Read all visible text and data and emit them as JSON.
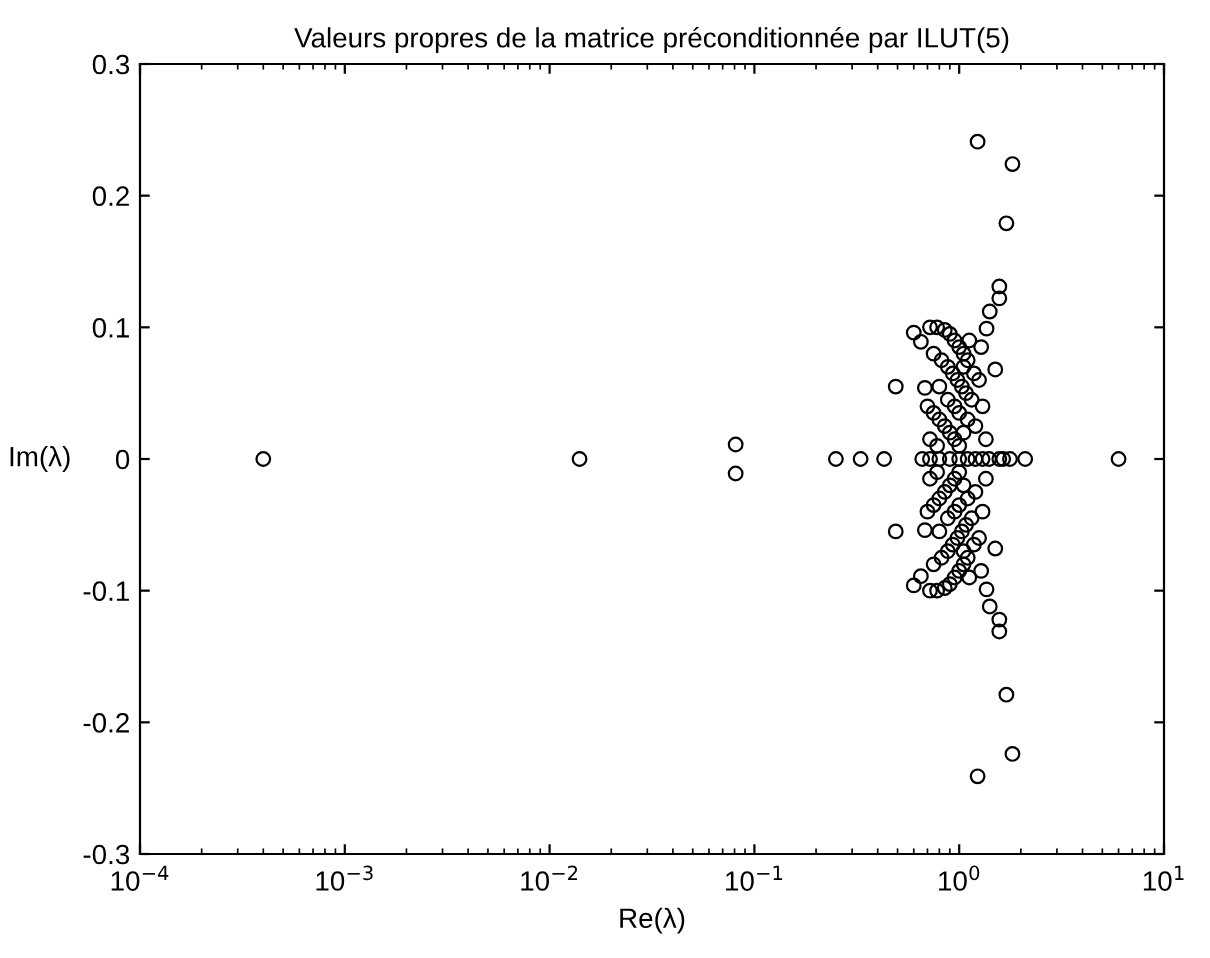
{
  "chart_data": {
    "type": "scatter",
    "title": "Valeurs propres de la matrice préconditionnée par ILUT(5)",
    "xlabel": "Re(λ)",
    "ylabel": "Im(λ)",
    "log": "x",
    "marker": "circle",
    "grid": false,
    "xlim": [
      0.0001,
      10
    ],
    "ylim": [
      -0.3,
      0.3
    ],
    "xticks": [
      {
        "value": 0.0001,
        "label": "10$^{−4}$"
      },
      {
        "value": 0.001,
        "label": "10$^{−3}$"
      },
      {
        "value": 0.01,
        "label": "10$^{−2}$"
      },
      {
        "value": 0.1,
        "label": "10$^{−1}$"
      },
      {
        "value": 1,
        "label": "10$^{0}$"
      },
      {
        "value": 10,
        "label": "10$^{1}$"
      }
    ],
    "yticks": [
      -0.3,
      -0.2,
      -0.1,
      0,
      0.1,
      0.2,
      0.3
    ],
    "series": [
      {
        "color": "#000000",
        "x": [
          0.0004,
          0.014,
          0.081,
          0.081,
          0.25,
          0.33,
          0.43,
          6.0,
          1.23,
          1.23,
          1.82,
          1.82,
          1.7,
          1.7,
          1.57,
          1.57,
          1.57,
          1.57,
          1.41,
          1.41,
          1.36,
          1.36,
          1.5,
          1.5,
          0.6,
          0.6,
          0.65,
          0.65,
          0.49,
          0.49,
          0.68,
          0.68,
          0.72,
          0.72,
          0.78,
          0.78,
          0.85,
          0.85,
          0.9,
          0.9,
          0.95,
          0.95,
          1.0,
          1.0,
          1.05,
          1.05,
          1.1,
          1.1,
          0.75,
          0.75,
          0.82,
          0.82,
          0.88,
          0.88,
          0.93,
          0.93,
          0.98,
          0.98,
          1.03,
          1.03,
          1.08,
          1.08,
          1.15,
          1.15,
          1.25,
          1.25,
          1.3,
          1.3,
          0.7,
          0.7,
          0.75,
          0.75,
          0.8,
          0.8,
          0.85,
          0.85,
          0.9,
          0.9,
          0.95,
          0.95,
          1.0,
          1.0,
          1.05,
          1.05,
          1.1,
          1.1,
          1.2,
          1.2,
          1.35,
          1.35,
          0.72,
          0.72,
          0.78,
          0.78,
          0.88,
          0.88,
          1.0,
          1.0,
          1.12,
          1.12,
          0.8,
          0.8,
          1.18,
          1.18,
          1.28,
          1.28,
          0.95,
          0.95,
          1.05,
          1.05,
          0.66,
          0.72,
          0.8,
          0.9,
          1.0,
          1.1,
          1.2,
          1.3,
          1.4,
          1.57,
          1.64,
          1.77,
          2.1
        ],
        "values": [
          0,
          0,
          0.011,
          -0.011,
          0,
          0,
          0,
          0,
          0.241,
          -0.241,
          0.224,
          -0.224,
          0.179,
          -0.179,
          0.131,
          -0.131,
          0.122,
          -0.122,
          0.112,
          -0.112,
          0.099,
          -0.099,
          0.068,
          -0.068,
          0.096,
          -0.096,
          0.089,
          -0.089,
          0.055,
          -0.055,
          0.054,
          -0.054,
          0.1,
          -0.1,
          0.1,
          -0.1,
          0.098,
          -0.098,
          0.095,
          -0.095,
          0.09,
          -0.09,
          0.085,
          -0.085,
          0.08,
          -0.08,
          0.075,
          -0.075,
          0.08,
          -0.08,
          0.075,
          -0.075,
          0.07,
          -0.07,
          0.065,
          -0.065,
          0.06,
          -0.06,
          0.055,
          -0.055,
          0.05,
          -0.05,
          0.045,
          -0.045,
          0.06,
          -0.06,
          0.04,
          -0.04,
          0.04,
          -0.04,
          0.035,
          -0.035,
          0.03,
          -0.03,
          0.025,
          -0.025,
          0.02,
          -0.02,
          0.015,
          -0.015,
          0.01,
          -0.01,
          0.02,
          -0.02,
          0.03,
          -0.03,
          0.025,
          -0.025,
          0.015,
          -0.015,
          0.015,
          -0.015,
          0.01,
          -0.01,
          0.045,
          -0.045,
          0.035,
          -0.035,
          0.09,
          -0.09,
          0.055,
          -0.055,
          0.065,
          -0.065,
          0.085,
          -0.085,
          0.04,
          -0.04,
          0.07,
          -0.07,
          0,
          0,
          0,
          0,
          0,
          0,
          0,
          0,
          0,
          0,
          0,
          0,
          0
        ]
      }
    ]
  }
}
